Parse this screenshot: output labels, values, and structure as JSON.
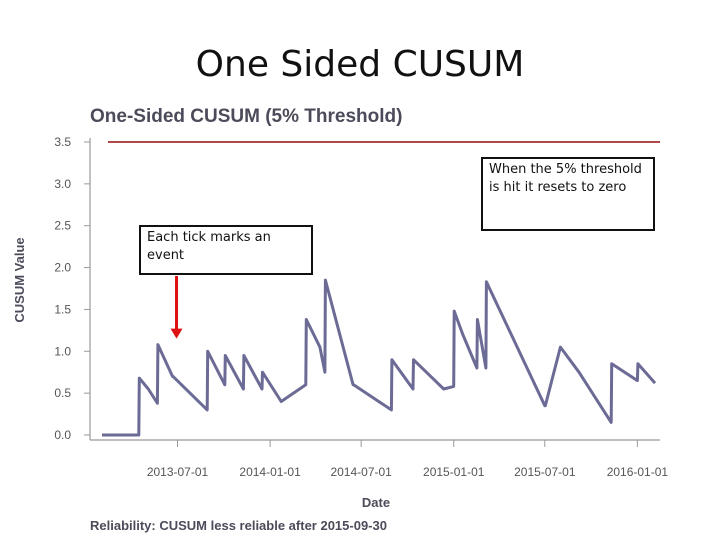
{
  "slide": {
    "title": "One Sided CUSUM"
  },
  "annotations": {
    "tick_note": "Each tick marks an event",
    "reset_note": "When the 5% threshold is hit it resets to zero"
  },
  "footer": "Reliability: CUSUM less reliable after 2015-09-30",
  "colors": {
    "series": "#6b6b96",
    "threshold": "#b04a4a",
    "arrow": "#dd1111"
  },
  "chart_data": {
    "type": "line",
    "title": "One-Sided CUSUM (5% Threshold)",
    "xlabel": "Date",
    "ylabel": "CUSUM Value",
    "ylim": [
      0,
      3.5
    ],
    "yticks": [
      0.0,
      0.5,
      1.0,
      1.5,
      2.0,
      2.5,
      3.0,
      3.5
    ],
    "ytick_labels": [
      "0.0",
      "0.5",
      "1.0",
      "1.5",
      "2.0",
      "2.5",
      "3.0",
      "3.5"
    ],
    "xlim": [
      "2013-01-18",
      "2016-02-05"
    ],
    "xticks": [
      "2013-07-01",
      "2014-01-01",
      "2014-07-01",
      "2015-01-01",
      "2015-07-01",
      "2016-01-01"
    ],
    "threshold": 3.5,
    "grid": false,
    "series": [
      {
        "x": [
          "2013-02-01",
          "2013-04-15",
          "2013-04-16",
          "2013-05-04",
          "2013-05-22",
          "2013-05-23",
          "2013-06-21",
          "2013-06-22",
          "2013-08-29",
          "2013-08-30",
          "2013-10-03",
          "2013-10-04",
          "2013-11-09",
          "2013-11-10",
          "2013-12-16",
          "2013-12-17",
          "2014-01-23",
          "2014-03-13",
          "2014-03-14",
          "2014-04-10",
          "2014-04-20",
          "2014-04-21",
          "2014-06-15",
          "2014-06-16",
          "2014-08-30",
          "2014-08-31",
          "2014-10-12",
          "2014-10-13",
          "2014-12-12",
          "2015-01-01",
          "2015-01-02",
          "2015-01-19",
          "2015-02-16",
          "2015-02-17",
          "2015-03-06",
          "2015-03-07",
          "2015-07-01",
          "2015-07-02",
          "2015-08-01",
          "2015-09-07",
          "2015-11-10",
          "2015-11-11",
          "2016-01-01",
          "2016-01-02",
          "2016-02-05"
        ],
        "y": [
          0.0,
          0.0,
          0.68,
          0.55,
          0.38,
          1.08,
          0.7,
          0.7,
          0.3,
          1.0,
          0.6,
          0.95,
          0.55,
          0.95,
          0.55,
          0.75,
          0.4,
          0.6,
          1.38,
          1.05,
          0.75,
          1.85,
          0.6,
          0.6,
          0.3,
          0.9,
          0.55,
          0.9,
          0.55,
          0.58,
          1.48,
          1.2,
          0.8,
          1.38,
          0.8,
          1.83,
          0.35,
          0.35,
          1.05,
          0.75,
          0.15,
          0.85,
          0.65,
          0.85,
          0.62
        ]
      }
    ],
    "arrow_target": {
      "x": "2013-07-01",
      "y": 1.08
    }
  }
}
